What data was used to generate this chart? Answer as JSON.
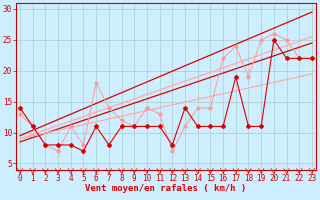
{
  "xlabel": "Vent moyen/en rafales ( km/h )",
  "bg_color": "#cceeff",
  "grid_color": "#aacccc",
  "x_ticks": [
    0,
    1,
    2,
    3,
    4,
    5,
    6,
    7,
    8,
    9,
    10,
    11,
    12,
    13,
    14,
    15,
    16,
    17,
    18,
    19,
    20,
    21,
    22,
    23
  ],
  "ylim": [
    4,
    31
  ],
  "xlim": [
    -0.3,
    23.3
  ],
  "yticks": [
    5,
    10,
    15,
    20,
    25,
    30
  ],
  "mean_wind": [
    14,
    11,
    8,
    8,
    8,
    7,
    11,
    8,
    11,
    11,
    11,
    11,
    8,
    14,
    11,
    11,
    11,
    19,
    11,
    11,
    25,
    22,
    22,
    22
  ],
  "gust_wind": [
    13,
    11,
    8,
    7,
    11,
    8,
    18,
    14,
    12,
    11,
    14,
    13,
    7,
    11,
    14,
    14,
    22,
    24,
    19,
    25,
    26,
    25,
    22,
    22
  ],
  "line1_y": [
    8.5,
    24.5
  ],
  "line2_y": [
    9.5,
    29.5
  ],
  "line3_y": [
    9.0,
    19.5
  ],
  "line4_y": [
    9.0,
    25.5
  ],
  "mean_color": "#dd0000",
  "gust_color": "#ff9999",
  "reg_color_dark": "#dd0000",
  "reg_color_light": "#ffaaaa",
  "tick_arrow_color": "#cc0000",
  "xlabel_color": "#dd0000",
  "tick_label_color": "#cc0000",
  "spine_color": "#cc0000"
}
